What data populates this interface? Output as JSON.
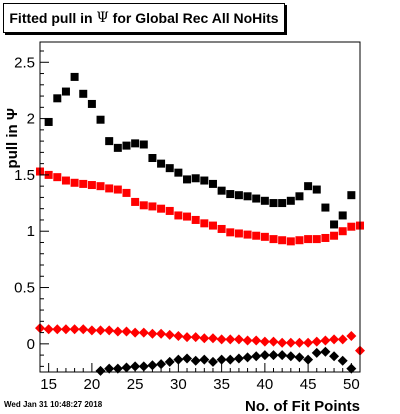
{
  "title": {
    "before": "Fitted pull in ",
    "symbol": "Ψ",
    "after": " for Global Rec All NoHits"
  },
  "footer": {
    "date": "Wed Jan 31 10:48:27 2018"
  },
  "chart_data": {
    "type": "scatter",
    "title": "Fitted pull in Ψ for Global Rec All NoHits",
    "xlabel": "No. of Fit Points",
    "ylabel": "pull in Ψ",
    "xlim": [
      14,
      51
    ],
    "ylim": [
      -0.25,
      2.68
    ],
    "x_ticks": [
      15,
      20,
      25,
      30,
      35,
      40,
      45,
      50
    ],
    "x_tick_labels": [
      "15",
      "20",
      "25",
      "30",
      "35",
      "40",
      "45",
      "50"
    ],
    "y_ticks": [
      0,
      0.5,
      1,
      1.5,
      2,
      2.5
    ],
    "y_tick_labels": [
      "0",
      "0.5",
      "1",
      "1.5",
      "2",
      "2.5"
    ],
    "grid": false,
    "series": [
      {
        "marker": "square",
        "color": "#000000",
        "x": [
          15,
          16,
          17,
          18,
          19,
          20,
          21,
          22,
          23,
          24,
          25,
          26,
          27,
          28,
          29,
          30,
          31,
          32,
          33,
          34,
          35,
          36,
          37,
          38,
          39,
          40,
          41,
          42,
          43,
          44,
          45,
          46,
          47,
          48,
          49,
          50
        ],
        "y": [
          1.97,
          2.18,
          2.24,
          2.37,
          2.22,
          2.13,
          1.99,
          1.8,
          1.74,
          1.76,
          1.78,
          1.77,
          1.65,
          1.6,
          1.56,
          1.52,
          1.46,
          1.47,
          1.45,
          1.42,
          1.36,
          1.33,
          1.32,
          1.31,
          1.29,
          1.27,
          1.25,
          1.25,
          1.27,
          1.31,
          1.4,
          1.37,
          1.21,
          1.06,
          1.14,
          1.32
        ]
      },
      {
        "marker": "square",
        "color": "#ff0000",
        "x": [
          14,
          15,
          16,
          17,
          18,
          19,
          20,
          21,
          22,
          23,
          24,
          25,
          26,
          27,
          28,
          29,
          30,
          31,
          32,
          33,
          34,
          35,
          36,
          37,
          38,
          39,
          40,
          41,
          42,
          43,
          44,
          45,
          46,
          47,
          48,
          49,
          50,
          51
        ],
        "y": [
          1.53,
          1.5,
          1.48,
          1.45,
          1.43,
          1.42,
          1.41,
          1.4,
          1.38,
          1.37,
          1.34,
          1.26,
          1.23,
          1.22,
          1.2,
          1.18,
          1.14,
          1.13,
          1.1,
          1.07,
          1.05,
          1.02,
          0.99,
          0.98,
          0.97,
          0.96,
          0.95,
          0.93,
          0.92,
          0.91,
          0.92,
          0.93,
          0.93,
          0.94,
          0.96,
          1.0,
          1.04,
          1.05
        ]
      },
      {
        "marker": "diamond",
        "color": "#ff0000",
        "x": [
          14,
          15,
          16,
          17,
          18,
          19,
          20,
          21,
          22,
          23,
          24,
          25,
          26,
          27,
          28,
          29,
          30,
          31,
          32,
          33,
          34,
          35,
          36,
          37,
          38,
          39,
          40,
          41,
          42,
          43,
          44,
          45,
          46,
          47,
          48,
          49,
          50
        ],
        "y": [
          0.14,
          0.13,
          0.13,
          0.13,
          0.13,
          0.13,
          0.12,
          0.12,
          0.12,
          0.11,
          0.11,
          0.1,
          0.1,
          0.09,
          0.09,
          0.08,
          0.07,
          0.06,
          0.06,
          0.05,
          0.05,
          0.04,
          0.04,
          0.04,
          0.03,
          0.03,
          0.02,
          0.02,
          0.01,
          0.01,
          0.01,
          0.01,
          0.02,
          0.03,
          0.04,
          0.04,
          0.07
        ]
      },
      {
        "marker": "diamond",
        "color": "#000000",
        "x": [
          21,
          22,
          23,
          24,
          25,
          26,
          27,
          28,
          29,
          30,
          31,
          32,
          33,
          34,
          35,
          36,
          37,
          38,
          39,
          40,
          41,
          42,
          43,
          44,
          45,
          46,
          47,
          48,
          49,
          50
        ],
        "y": [
          -0.24,
          -0.22,
          -0.22,
          -0.21,
          -0.2,
          -0.2,
          -0.19,
          -0.18,
          -0.16,
          -0.14,
          -0.13,
          -0.15,
          -0.14,
          -0.16,
          -0.14,
          -0.14,
          -0.13,
          -0.12,
          -0.11,
          -0.1,
          -0.1,
          -0.1,
          -0.11,
          -0.12,
          -0.14,
          -0.08,
          -0.07,
          -0.11,
          -0.15,
          -0.22
        ]
      },
      {
        "marker": "diamond",
        "color": "#ff0000",
        "x": [
          51
        ],
        "y": [
          -0.06
        ]
      }
    ]
  }
}
